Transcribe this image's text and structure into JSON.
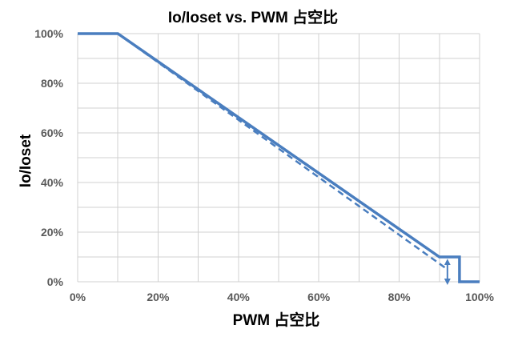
{
  "chart_data": {
    "type": "line",
    "title": "Io/Ioset vs. PWM 占空比",
    "xlabel": "PWM 占空比",
    "ylabel": "Io/Ioset",
    "x_ticks": [
      "0%",
      "20%",
      "40%",
      "60%",
      "80%",
      "100%"
    ],
    "y_ticks": [
      "0%",
      "20%",
      "40%",
      "60%",
      "80%",
      "100%"
    ],
    "xlim": [
      0,
      100
    ],
    "ylim": [
      0,
      100
    ],
    "x_step": 10,
    "y_step": 10,
    "grid": true,
    "legend": "none",
    "color": "#4a7ebf",
    "series": [
      {
        "style": "solid",
        "points": [
          {
            "x": 0,
            "y": 100
          },
          {
            "x": 10,
            "y": 100
          },
          {
            "x": 90,
            "y": 10
          },
          {
            "x": 95,
            "y": 10
          },
          {
            "x": 95,
            "y": 0
          },
          {
            "x": 100,
            "y": 0
          }
        ]
      },
      {
        "style": "dashed",
        "points": [
          {
            "x": 10,
            "y": 100
          },
          {
            "x": 92,
            "y": 5
          }
        ]
      }
    ],
    "annotations": [
      {
        "type": "double-arrow",
        "x": 92,
        "y_from": 8,
        "y_to": 0
      }
    ]
  }
}
